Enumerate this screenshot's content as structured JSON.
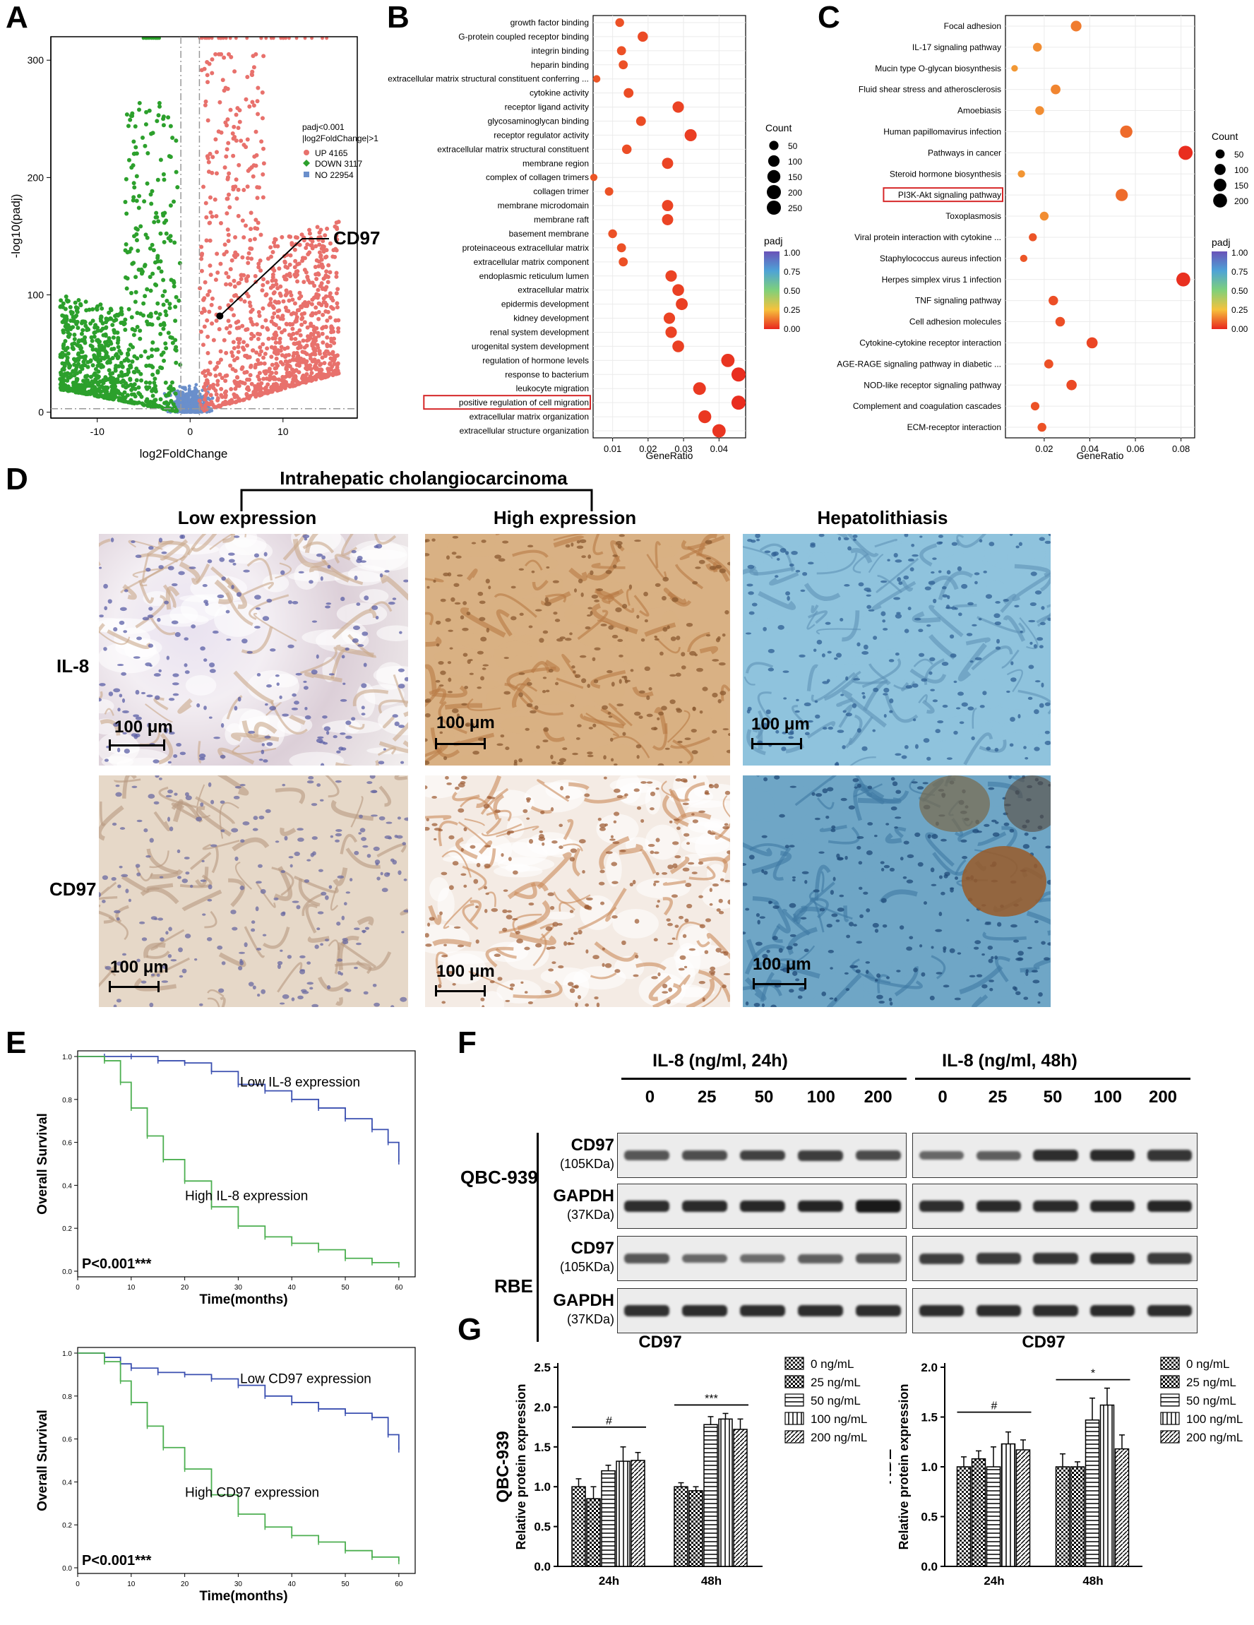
{
  "panels": {
    "A": "A",
    "B": "B",
    "C": "C",
    "D": "D",
    "E": "E",
    "F": "F",
    "G": "G"
  },
  "colors": {
    "up": "#e8716c",
    "down": "#2ca02c",
    "no": "#6a8fcb",
    "red_box": "#d62728",
    "blue_line": "#3a4fb0",
    "green_line": "#4caf50"
  },
  "volcano": {
    "xlabel": "log2FoldChange",
    "ylabel": "-log10(padj)",
    "legend_title_1": "padj<0.001",
    "legend_title_2": "|log2FoldChange|>1",
    "legend": [
      {
        "name": "UP 4165",
        "color": "#e8716c"
      },
      {
        "name": "DOWN 3117",
        "color": "#2ca02c"
      },
      {
        "name": "NO 22954",
        "color": "#6a8fcb"
      }
    ],
    "xticks": [
      -10,
      0,
      10
    ],
    "yticks": [
      0,
      100,
      200,
      300
    ],
    "annotation": "CD97",
    "xlim": [
      -15,
      18
    ],
    "ylim": [
      -5,
      320
    ]
  },
  "chart_data": [
    {
      "type": "scatter",
      "panel": "A",
      "xlabel": "log2FoldChange",
      "ylabel": "-log10(padj)",
      "xlim": [
        -15,
        18
      ],
      "ylim": [
        -5,
        320
      ],
      "series": [
        {
          "name": "UP 4165",
          "count": 4165
        },
        {
          "name": "DOWN 3117",
          "count": 3117
        },
        {
          "name": "NO 22954",
          "count": 22954
        }
      ],
      "thresholds": {
        "x": [
          -1,
          1
        ],
        "y": 3
      },
      "annotation": {
        "label": "CD97",
        "x": 3.2,
        "y": 82
      }
    },
    {
      "type": "scatter",
      "panel": "B",
      "xlabel": "GeneRatio",
      "xlim": [
        0.0045,
        0.0475
      ],
      "xticks": [
        0.01,
        0.02,
        0.03,
        0.04
      ],
      "size_legend_title": "Count",
      "size_legend": [
        50,
        100,
        150,
        200,
        250
      ],
      "color_legend_title": "padj",
      "color_legend": [
        "1.00",
        "0.75",
        "0.50",
        "0.25",
        "0.00"
      ],
      "terms": [
        "growth factor binding",
        "G-protein coupled receptor binding",
        "integrin binding",
        "heparin binding",
        "extracellular matrix structural constituent conferring ...",
        "cytokine activity",
        "receptor ligand activity",
        "glycosaminoglycan binding",
        "receptor regulator activity",
        "extracellular matrix structural constituent",
        "membrane region",
        "complex of collagen trimers",
        "collagen trimer",
        "membrane microdomain",
        "membrane raft",
        "basement membrane",
        "proteinaceous extracellular matrix",
        "extracellular matrix component",
        "endoplasmic reticulum lumen",
        "extracellular matrix",
        "epidermis development",
        "kidney development",
        "renal system development",
        "urogenital system development",
        "regulation of hormone levels",
        "response to bacterium",
        "leukocyte migration",
        "positive regulation of cell migration",
        "extracellular matrix organization",
        "extracellular structure organization"
      ],
      "gene_ratio": [
        0.012,
        0.0185,
        0.0125,
        0.013,
        0.0055,
        0.0145,
        0.0285,
        0.018,
        0.032,
        0.014,
        0.0255,
        0.0047,
        0.009,
        0.0255,
        0.0255,
        0.01,
        0.0125,
        0.013,
        0.0265,
        0.0285,
        0.0295,
        0.026,
        0.0265,
        0.0285,
        0.0425,
        0.0455,
        0.0345,
        0.0455,
        0.036,
        0.04
      ],
      "count": [
        40,
        70,
        45,
        45,
        20,
        60,
        100,
        60,
        120,
        55,
        95,
        18,
        35,
        95,
        95,
        40,
        45,
        45,
        100,
        110,
        115,
        100,
        100,
        110,
        160,
        190,
        140,
        190,
        145,
        160
      ],
      "highlighted": "positive regulation of cell migration"
    },
    {
      "type": "scatter",
      "panel": "C",
      "xlabel": "GeneRatio",
      "xlim": [
        0.003,
        0.086
      ],
      "xticks": [
        0.02,
        0.04,
        0.06,
        0.08
      ],
      "size_legend_title": "Count",
      "size_legend": [
        50,
        100,
        150,
        200
      ],
      "color_legend_title": "padj",
      "color_legend": [
        "1.00",
        "0.75",
        "0.50",
        "0.25",
        "0.00"
      ],
      "terms": [
        "Focal adhesion",
        "IL-17 signaling pathway",
        "Mucin type O-glycan biosynthesis",
        "Fluid shear stress and atherosclerosis",
        "Amoebiasis",
        "Human papillomavirus infection",
        "Pathways in cancer",
        "Steroid hormone biosynthesis",
        "PI3K-Akt signaling pathway",
        "Toxoplasmosis",
        "Viral protein interaction with cytokine ...",
        "Staphylococcus aureus infection",
        "Herpes simplex virus 1 infection",
        "TNF signaling pathway",
        "Cell adhesion molecules",
        "Cytokine-cytokine receptor interaction",
        "AGE-RAGE signaling pathway in diabetic ...",
        "NOD-like receptor signaling pathway",
        "Complement and coagulation cascades",
        "ECM-receptor interaction"
      ],
      "gene_ratio": [
        0.034,
        0.017,
        0.007,
        0.025,
        0.018,
        0.056,
        0.082,
        0.01,
        0.054,
        0.02,
        0.015,
        0.011,
        0.081,
        0.024,
        0.027,
        0.041,
        0.022,
        0.032,
        0.016,
        0.019
      ],
      "count": [
        90,
        45,
        12,
        65,
        45,
        140,
        210,
        20,
        135,
        45,
        30,
        20,
        200,
        60,
        60,
        100,
        50,
        80,
        40,
        45
      ],
      "highlighted": "PI3K-Akt signaling pathway"
    },
    {
      "type": "line",
      "panel": "E-top",
      "xlabel": "Time(months)",
      "ylabel": "Overall Survival",
      "xlim": [
        0,
        62
      ],
      "ylim": [
        0,
        1.0
      ],
      "yticks": [
        "0.0",
        "0.2",
        "0.4",
        "0.6",
        "0.8",
        "1.0"
      ],
      "series": [
        {
          "name": "Low IL-8 expression",
          "x": [
            0,
            5,
            10,
            15,
            20,
            25,
            30,
            35,
            40,
            45,
            50,
            55,
            58,
            60
          ],
          "y": [
            1.0,
            1.0,
            1.0,
            0.98,
            0.97,
            0.93,
            0.87,
            0.84,
            0.8,
            0.76,
            0.71,
            0.66,
            0.6,
            0.51
          ]
        },
        {
          "name": "High IL-8 expression",
          "x": [
            0,
            5,
            8,
            10,
            13,
            16,
            20,
            25,
            30,
            35,
            40,
            45,
            50,
            55,
            60
          ],
          "y": [
            1.0,
            0.98,
            0.88,
            0.76,
            0.63,
            0.52,
            0.42,
            0.3,
            0.21,
            0.16,
            0.13,
            0.1,
            0.06,
            0.04,
            0.03
          ]
        }
      ],
      "annotation": "P<0.001***"
    },
    {
      "type": "line",
      "panel": "E-bottom",
      "xlabel": "Time(months)",
      "ylabel": "Overall Survival",
      "xlim": [
        0,
        62
      ],
      "ylim": [
        0,
        1.0
      ],
      "yticks": [
        "0.0",
        "0.2",
        "0.4",
        "0.6",
        "0.8",
        "1.0"
      ],
      "series": [
        {
          "name": "Low CD97 expression",
          "x": [
            0,
            5,
            8,
            10,
            15,
            20,
            25,
            30,
            35,
            40,
            45,
            50,
            55,
            58,
            60
          ],
          "y": [
            1.0,
            0.98,
            0.95,
            0.93,
            0.91,
            0.9,
            0.88,
            0.85,
            0.8,
            0.77,
            0.74,
            0.72,
            0.7,
            0.62,
            0.55
          ]
        },
        {
          "name": "High CD97 expression",
          "x": [
            0,
            5,
            8,
            10,
            13,
            16,
            20,
            25,
            30,
            35,
            40,
            45,
            50,
            55,
            60
          ],
          "y": [
            1.0,
            0.96,
            0.87,
            0.77,
            0.66,
            0.56,
            0.46,
            0.34,
            0.25,
            0.19,
            0.15,
            0.12,
            0.08,
            0.05,
            0.03
          ]
        }
      ],
      "annotation": "P<0.001***"
    },
    {
      "type": "bar",
      "panel": "G-left",
      "title": "CD97",
      "ylabel": "Relative protein expression",
      "row_label": "QBC-939",
      "categories": [
        "24h",
        "48h"
      ],
      "ylim": [
        0,
        2.5
      ],
      "yticks": [
        "0.0",
        "0.5",
        "1.0",
        "1.5",
        "2.0",
        "2.5"
      ],
      "series": [
        {
          "name": "0 ng/mL",
          "values": [
            1.0,
            1.0
          ],
          "errors": [
            0.1,
            0.05
          ]
        },
        {
          "name": "25 ng/mL",
          "values": [
            0.85,
            0.95
          ],
          "errors": [
            0.15,
            0.05
          ]
        },
        {
          "name": "50 ng/mL",
          "values": [
            1.2,
            1.78
          ],
          "errors": [
            0.07,
            0.1
          ]
        },
        {
          "name": "100 ng/mL",
          "values": [
            1.32,
            1.85
          ],
          "errors": [
            0.18,
            0.07
          ]
        },
        {
          "name": "200 ng/mL",
          "values": [
            1.33,
            1.72
          ],
          "errors": [
            0.1,
            0.13
          ]
        }
      ],
      "significance": [
        "#",
        "***"
      ]
    },
    {
      "type": "bar",
      "panel": "G-right",
      "title": "CD97",
      "ylabel": "Relative protein expression",
      "row_label": "RBE",
      "categories": [
        "24h",
        "48h"
      ],
      "ylim": [
        0,
        2.0
      ],
      "yticks": [
        "0.0",
        "0.5",
        "1.0",
        "1.5",
        "2.0"
      ],
      "series": [
        {
          "name": "0 ng/mL",
          "values": [
            1.0,
            1.0
          ],
          "errors": [
            0.1,
            0.13
          ]
        },
        {
          "name": "25 ng/mL",
          "values": [
            1.08,
            1.0
          ],
          "errors": [
            0.08,
            0.05
          ]
        },
        {
          "name": "50 ng/mL",
          "values": [
            1.0,
            1.47
          ],
          "errors": [
            0.2,
            0.22
          ]
        },
        {
          "name": "100 ng/mL",
          "values": [
            1.23,
            1.62
          ],
          "errors": [
            0.12,
            0.17
          ]
        },
        {
          "name": "200 ng/mL",
          "values": [
            1.17,
            1.18
          ],
          "errors": [
            0.1,
            0.14
          ]
        }
      ],
      "significance": [
        "#",
        "*"
      ]
    }
  ],
  "dotplot_b": {
    "xlabel": "GeneRatio",
    "count_title": "Count",
    "padj_title": "padj",
    "count_labels": [
      "50",
      "100",
      "150",
      "200",
      "250"
    ],
    "padj_labels": [
      "1.00",
      "0.75",
      "0.50",
      "0.25",
      "0.00"
    ],
    "xticks": [
      "0.01",
      "0.02",
      "0.03",
      "0.04"
    ]
  },
  "dotplot_c": {
    "xlabel": "GeneRatio",
    "count_title": "Count",
    "padj_title": "padj",
    "count_labels": [
      "50",
      "100",
      "150",
      "200"
    ],
    "padj_labels": [
      "1.00",
      "0.75",
      "0.50",
      "0.25",
      "0.00"
    ],
    "xticks": [
      "0.02",
      "0.04",
      "0.06",
      "0.08"
    ]
  },
  "ihc": {
    "group_title": "Intrahepatic cholangiocarcinoma",
    "columns": [
      "Low expression",
      "High expression",
      "Hepatolithiasis"
    ],
    "rows": [
      "IL-8",
      "CD97"
    ],
    "scale": "100 μm"
  },
  "km": {
    "xlabel": "Time(months)",
    "ylabel": "Overall Survival",
    "xticks": [
      "0",
      "10",
      "20",
      "30",
      "40",
      "50",
      "60"
    ],
    "yticks": [
      "0.0",
      "0.2",
      "0.4",
      "0.6",
      "0.8",
      "1.0"
    ],
    "top_low": "Low IL-8 expression",
    "top_high": "High IL-8 expression",
    "bottom_low": "Low CD97 expression",
    "bottom_high": "High CD97 expression",
    "pvalue": "P<0.001***"
  },
  "western": {
    "header_24": "IL-8 (ng/ml, 24h)",
    "header_48": "IL-8 (ng/ml, 48h)",
    "doses": [
      "0",
      "25",
      "50",
      "100",
      "200"
    ],
    "cell_lines": [
      "QBC-939",
      "RBE"
    ],
    "cd97": "CD97",
    "cd97_kda": "(105KDa)",
    "gapdh": "GAPDH",
    "gapdh_kda": "(37KDa)",
    "intensity": {
      "qbc_cd97_24": [
        0.55,
        0.6,
        0.68,
        0.7,
        0.62
      ],
      "qbc_gapdh_24": [
        0.8,
        0.82,
        0.84,
        0.86,
        0.92
      ],
      "qbc_cd97_48": [
        0.45,
        0.5,
        0.8,
        0.82,
        0.75
      ],
      "qbc_gapdh_48": [
        0.8,
        0.82,
        0.82,
        0.84,
        0.84
      ],
      "rbe_cd97_24": [
        0.55,
        0.45,
        0.42,
        0.5,
        0.58
      ],
      "rbe_gapdh_24": [
        0.78,
        0.8,
        0.8,
        0.8,
        0.8
      ],
      "rbe_cd97_48": [
        0.7,
        0.72,
        0.75,
        0.8,
        0.72
      ],
      "rbe_gapdh_48": [
        0.8,
        0.8,
        0.8,
        0.82,
        0.8
      ]
    }
  },
  "bars": {
    "title": "CD97",
    "ylabel": "Relative protein expression",
    "left_row": "QBC-939",
    "right_row": "RBE",
    "categories": [
      "24h",
      "48h"
    ],
    "legend": [
      "0 ng/mL",
      "25 ng/mL",
      "50 ng/mL",
      "100 ng/mL",
      "200 ng/mL"
    ]
  }
}
